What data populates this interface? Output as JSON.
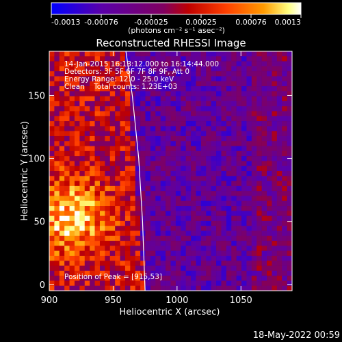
{
  "colorbar": {
    "ticks": [
      "-0.0013",
      "-0.00076",
      "-0.00025",
      "0.00025",
      "0.00076",
      "0.0013"
    ],
    "unit_label": "(photons cm⁻² s⁻¹ asec⁻²)",
    "colors": [
      "#0000ff",
      "#5a00aa",
      "#800060",
      "#c00000",
      "#ff4000",
      "#ff9a00",
      "#ffff80",
      "#ffffff"
    ]
  },
  "chart_data": {
    "type": "heatmap",
    "title": "Reconstructed RHESSI Image",
    "xlabel": "Heliocentric X (arcsec)",
    "ylabel": "Heliocentric Y (arcsec)",
    "xlim": [
      900,
      1090
    ],
    "ylim": [
      -5,
      185
    ],
    "x_ticks": [
      900,
      950,
      1000,
      1050
    ],
    "y_ticks": [
      0,
      50,
      100,
      150
    ],
    "color_range": [
      -0.0013,
      0.0013
    ],
    "peak": [
      915,
      53
    ],
    "limb_curve_x_at_y": [
      [
        185,
        960
      ],
      [
        150,
        965
      ],
      [
        100,
        970
      ],
      [
        50,
        973
      ],
      [
        -5,
        975
      ]
    ],
    "annotations": [
      "14-Jan-2015 16:13:12.000 to 16:14:44.000",
      "Detectors: 3F 5F 6F 7F 8F 9F, Att 0",
      "Energy Range: 12.0 - 25.0 keV",
      "Clean    Total counts: 1.23E+03",
      "Position of Peak = [915,53]"
    ]
  },
  "footer": {
    "timestamp": "18-May-2022 00:59"
  }
}
